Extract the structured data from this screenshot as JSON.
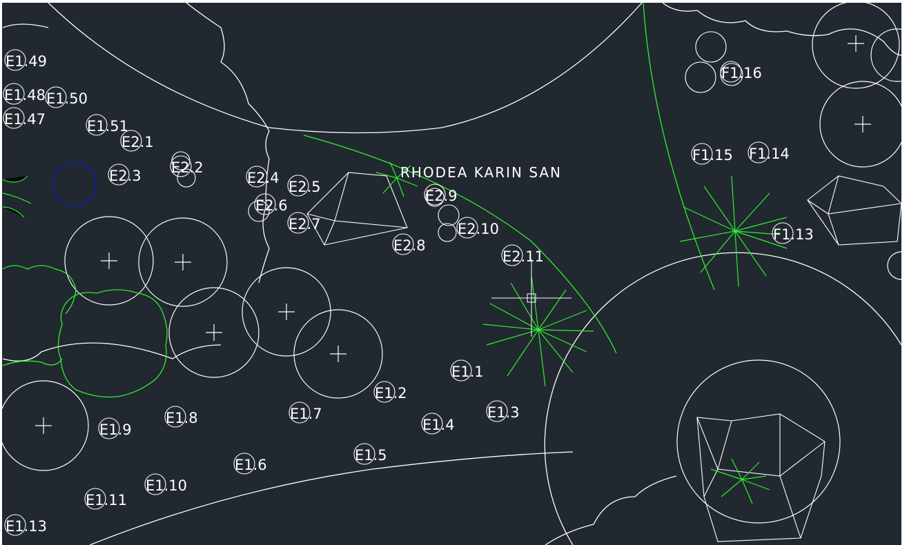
{
  "colors": {
    "background": "#212830",
    "frame": "#ffffff",
    "linework": "#ffffff",
    "plant": "#2ef02e",
    "highlight": "#1020a0"
  },
  "plant_note": "RHODEA KARIN SAN",
  "plant_labels": [
    "E1.49",
    "E1.48",
    "E1.50",
    "E1.47",
    "E1.51",
    "E2.1",
    "E2.3",
    "E2.2",
    "E2.4",
    "E2.5",
    "E2.6",
    "E2.7",
    "E2.9",
    "E2.10",
    "E2.8",
    "E2.11",
    "E1.1",
    "E1.2",
    "E1.3",
    "E1.4",
    "E1.5",
    "E1.6",
    "E1.7",
    "E1.8",
    "E1.9",
    "E1.10",
    "E1.11",
    "E1.13",
    "F1.16",
    "F1.15",
    "F1.14",
    "F1.13"
  ]
}
